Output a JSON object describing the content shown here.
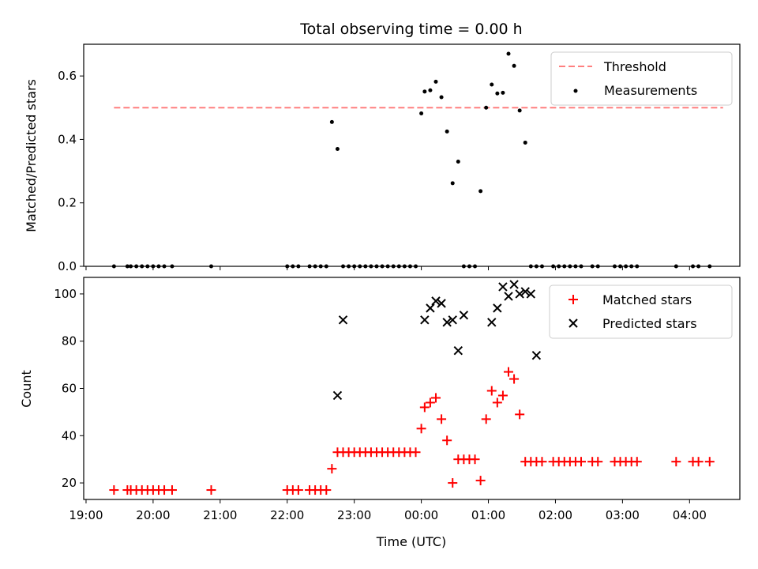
{
  "chart_data": [
    {
      "type": "scatter",
      "title": "Total observing time = 0.00 h",
      "ylabel": "Matched/Predicted stars",
      "xlabel": "",
      "xlim": [
        "19:00",
        "04:45"
      ],
      "ylim": [
        0,
        0.7
      ],
      "yticks": [
        "0.0",
        "0.2",
        "0.4",
        "0.6"
      ],
      "grid": false,
      "legend": "top-right",
      "threshold": {
        "name": "Threshold",
        "y": 0.5,
        "x_range": [
          "19:25",
          "04:30"
        ],
        "color": "#ff7f7f"
      },
      "series": [
        {
          "name": "Measurements",
          "color": "#000000",
          "x": [
            "19:25",
            "19:37",
            "19:40",
            "19:45",
            "19:50",
            "19:55",
            "20:00",
            "20:05",
            "20:10",
            "20:17",
            "20:52",
            "22:00",
            "22:05",
            "22:10",
            "22:20",
            "22:25",
            "22:30",
            "22:35",
            "22:40",
            "22:45",
            "22:50",
            "22:55",
            "23:00",
            "23:05",
            "23:10",
            "23:15",
            "23:20",
            "23:25",
            "23:30",
            "23:35",
            "23:40",
            "23:45",
            "23:50",
            "23:55",
            "00:00",
            "00:03",
            "00:08",
            "00:13",
            "00:18",
            "00:23",
            "00:28",
            "00:33",
            "00:38",
            "00:43",
            "00:48",
            "00:53",
            "00:58",
            "01:03",
            "01:08",
            "01:13",
            "01:18",
            "01:23",
            "01:28",
            "01:33",
            "01:38",
            "01:43",
            "01:48",
            "01:58",
            "02:03",
            "02:08",
            "02:13",
            "02:18",
            "02:23",
            "02:33",
            "02:38",
            "02:53",
            "02:58",
            "03:03",
            "03:08",
            "03:13",
            "03:48",
            "04:03",
            "04:08",
            "04:18"
          ],
          "y": [
            0,
            0,
            0,
            0,
            0,
            0,
            0,
            0,
            0,
            0,
            0,
            0,
            0,
            0,
            0,
            0,
            0,
            0,
            0.455,
            0.37,
            0,
            0,
            0,
            0,
            0,
            0,
            0,
            0,
            0,
            0,
            0,
            0,
            0,
            0,
            0.482,
            0.551,
            0.555,
            0.582,
            0.533,
            0.425,
            0.262,
            0.33,
            0,
            0,
            0,
            0.237,
            0.5,
            0.573,
            0.545,
            0.547,
            0.67,
            0.632,
            0.491,
            0.39,
            0,
            0,
            0,
            0,
            0,
            0,
            0,
            0,
            0,
            0,
            0,
            0,
            0,
            0,
            0,
            0,
            0,
            0,
            0,
            0
          ]
        }
      ]
    },
    {
      "type": "scatter",
      "title": "",
      "xlabel": "Time (UTC)",
      "ylabel": "Count",
      "xlim": [
        "19:00",
        "04:45"
      ],
      "ylim": [
        13,
        107
      ],
      "xticks": [
        "19:00",
        "20:00",
        "21:00",
        "22:00",
        "23:00",
        "00:00",
        "01:00",
        "02:00",
        "03:00",
        "04:00"
      ],
      "yticks": [
        "20",
        "40",
        "60",
        "80",
        "100"
      ],
      "grid": false,
      "legend": "top-right",
      "series": [
        {
          "name": "Matched stars",
          "marker": "+",
          "color": "#ff0000",
          "x": [
            "19:25",
            "19:37",
            "19:40",
            "19:45",
            "19:50",
            "19:55",
            "20:00",
            "20:05",
            "20:10",
            "20:17",
            "20:52",
            "22:00",
            "22:05",
            "22:10",
            "22:20",
            "22:25",
            "22:30",
            "22:35",
            "22:40",
            "22:45",
            "22:50",
            "22:55",
            "23:00",
            "23:05",
            "23:10",
            "23:15",
            "23:20",
            "23:25",
            "23:30",
            "23:35",
            "23:40",
            "23:45",
            "23:50",
            "23:55",
            "00:00",
            "00:03",
            "00:08",
            "00:13",
            "00:18",
            "00:23",
            "00:28",
            "00:33",
            "00:38",
            "00:43",
            "00:48",
            "00:53",
            "00:58",
            "01:03",
            "01:08",
            "01:13",
            "01:18",
            "01:23",
            "01:28",
            "01:33",
            "01:38",
            "01:43",
            "01:48",
            "01:58",
            "02:03",
            "02:08",
            "02:13",
            "02:18",
            "02:23",
            "02:33",
            "02:38",
            "02:53",
            "02:58",
            "03:03",
            "03:08",
            "03:13",
            "03:48",
            "04:03",
            "04:08",
            "04:18"
          ],
          "y": [
            17,
            17,
            17,
            17,
            17,
            17,
            17,
            17,
            17,
            17,
            17,
            17,
            17,
            17,
            17,
            17,
            17,
            17,
            26,
            33,
            33,
            33,
            33,
            33,
            33,
            33,
            33,
            33,
            33,
            33,
            33,
            33,
            33,
            33,
            43,
            52,
            54,
            56,
            47,
            38,
            20,
            30,
            30,
            30,
            30,
            21,
            47,
            59,
            54,
            57,
            67,
            64,
            49,
            29,
            29,
            29,
            29,
            29,
            29,
            29,
            29,
            29,
            29,
            29,
            29,
            29,
            29,
            29,
            29,
            29,
            29,
            29,
            29,
            29
          ]
        },
        {
          "name": "Predicted stars",
          "marker": "x",
          "color": "#000000",
          "x": [
            "22:45",
            "22:50",
            "00:03",
            "00:08",
            "00:13",
            "00:18",
            "00:23",
            "00:28",
            "00:33",
            "00:38",
            "01:03",
            "01:08",
            "01:13",
            "01:18",
            "01:23",
            "01:28",
            "01:33",
            "01:38",
            "01:43"
          ],
          "y": [
            57,
            89,
            89,
            94,
            97,
            96,
            88,
            89,
            76,
            91,
            88,
            94,
            103,
            99,
            104,
            100,
            101,
            100,
            74
          ]
        }
      ]
    }
  ]
}
